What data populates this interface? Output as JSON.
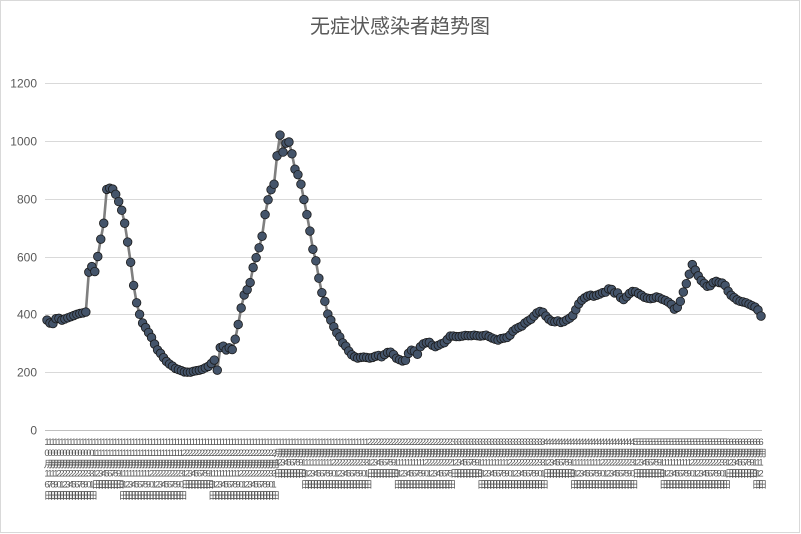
{
  "colors": {
    "line": "#7f7f7f",
    "marker_fill": "#44546a",
    "marker_stroke": "#1a1a1a",
    "gridline": "#d9d9d9",
    "axis": "#bfbfbf",
    "text": "#595959"
  },
  "chart_data": {
    "type": "line",
    "title": "无症状感染者趋势图",
    "xlabel": "",
    "ylabel": "",
    "ylim": [
      0,
      1200
    ],
    "y_ticks": [
      "0",
      "200",
      "400",
      "600",
      "800",
      "1000",
      "1200"
    ],
    "grid": "horizontal",
    "legend": "none",
    "markers": "circle",
    "categories": [
      "10月16日",
      "10月17日",
      "10月18日",
      "10月19日",
      "10月20日",
      "10月21日",
      "10月22日",
      "10月23日",
      "10月24日",
      "10月25日",
      "10月26日",
      "10月27日",
      "10月28日",
      "10月29日",
      "10月30日",
      "10月31日",
      "11月1日",
      "11月2日",
      "11月3日",
      "11月4日",
      "11月5日",
      "11月6日",
      "11月7日",
      "11月8日",
      "11月9日",
      "11月10日",
      "11月11日",
      "11月12日",
      "11月13日",
      "11月14日",
      "11月15日",
      "11月16日",
      "11月17日",
      "11月18日",
      "11月19日",
      "11月20日",
      "11月21日",
      "11月22日",
      "11月23日",
      "11月24日",
      "11月25日",
      "11月26日",
      "11月27日",
      "11月28日",
      "11月29日",
      "11月30日",
      "12月1日",
      "12月2日",
      "12月3日",
      "12月4日",
      "12月5日",
      "12月6日",
      "12月7日",
      "12月8日",
      "12月9日",
      "12月10日",
      "12月11日",
      "12月12日",
      "12月13日",
      "12月14日",
      "12月15日",
      "12月16日",
      "12月17日",
      "12月18日",
      "12月19日",
      "12月20日",
      "12月21日",
      "12月22日",
      "12月23日",
      "12月24日",
      "12月25日",
      "12月26日",
      "12月27日",
      "12月28日",
      "12月29日",
      "12月30日",
      "12月31日",
      "1月1日",
      "1月2日",
      "1月3日",
      "1月4日",
      "1月5日",
      "1月6日",
      "1月7日",
      "1月8日",
      "1月9日",
      "1月10日",
      "1月11日",
      "1月12日",
      "1月13日",
      "1月14日",
      "1月15日",
      "1月16日",
      "1月17日",
      "1月18日",
      "1月19日",
      "1月20日",
      "1月21日",
      "1月22日",
      "1月23日",
      "1月24日",
      "1月25日",
      "1月26日",
      "1月27日",
      "1月28日",
      "1月29日",
      "1月30日",
      "1月31日",
      "2月1日",
      "2月2日",
      "2月3日",
      "2月4日",
      "2月5日",
      "2月6日",
      "2月7日",
      "2月8日",
      "2月9日",
      "2月10日",
      "2月11日",
      "2月12日",
      "2月13日",
      "2月14日",
      "2月15日",
      "2月16日",
      "2月17日",
      "2月18日",
      "2月19日",
      "2月20日",
      "2月21日",
      "2月22日",
      "2月23日",
      "2月24日",
      "2月25日",
      "2月26日",
      "2月27日",
      "2月28日",
      "3月1日",
      "3月2日",
      "3月3日",
      "3月4日",
      "3月5日",
      "3月6日",
      "3月7日",
      "3月8日",
      "3月9日",
      "3月10日",
      "3月11日",
      "3月12日",
      "3月13日",
      "3月14日",
      "3月15日",
      "3月16日",
      "3月17日",
      "3月18日",
      "3月19日",
      "3月20日",
      "3月21日",
      "3月22日",
      "3月23日",
      "3月24日",
      "3月25日",
      "3月26日",
      "3月27日",
      "3月28日",
      "3月29日",
      "3月30日",
      "3月31日",
      "4月1日",
      "4月2日",
      "4月3日",
      "4月4日",
      "4月5日",
      "4月6日",
      "4月7日",
      "4月8日",
      "4月9日",
      "4月10日",
      "4月11日",
      "4月12日",
      "4月13日",
      "4月14日",
      "4月15日",
      "4月16日",
      "4月17日",
      "4月18日",
      "4月19日",
      "4月20日",
      "4月21日",
      "4月22日",
      "4月23日",
      "4月24日",
      "4月25日",
      "4月26日",
      "4月27日",
      "4月28日",
      "4月29日",
      "4月30日",
      "5月1日",
      "5月2日",
      "5月3日",
      "5月4日",
      "5月5日",
      "5月6日",
      "5月7日",
      "5月8日",
      "5月9日",
      "5月10日",
      "5月11日",
      "5月12日",
      "5月13日",
      "5月14日",
      "5月15日",
      "5月16日",
      "5月17日",
      "5月18日",
      "5月19日",
      "5月20日",
      "5月21日",
      "5月22日",
      "5月23日",
      "5月24日",
      "5月25日",
      "5月26日",
      "5月27日",
      "5月28日",
      "5月29日",
      "5月30日",
      "5月31日",
      "6月1日",
      "6月2日",
      "6月3日",
      "6月4日",
      "6月5日",
      "6月6日",
      "6月7日",
      "6月8日",
      "6月9日",
      "6月10日",
      "6月11日",
      "6月12日"
    ],
    "series": [
      {
        "values": [
          380,
          370,
          368,
          385,
          386,
          380,
          384,
          388,
          392,
          396,
          400,
          403,
          405,
          408,
          546,
          565,
          548,
          600,
          660,
          715,
          832,
          836,
          833,
          815,
          790,
          760,
          715,
          650,
          580,
          500,
          440,
          400,
          370,
          354,
          337,
          320,
          297,
          277,
          265,
          250,
          237,
          228,
          221,
          213,
          209,
          205,
          201,
          200,
          200,
          203,
          205,
          207,
          210,
          215,
          220,
          230,
          242,
          207,
          285,
          290,
          277,
          284,
          278,
          314,
          365,
          422,
          467,
          485,
          510,
          562,
          596,
          630,
          670,
          745,
          796,
          831,
          850,
          948,
          1020,
          961,
          992,
          996,
          955,
          902,
          883,
          850,
          797,
          745,
          688,
          625,
          585,
          525,
          475,
          445,
          401,
          380,
          357,
          336,
          322,
          301,
          290,
          273,
          260,
          253,
          249,
          251,
          252,
          251,
          249,
          251,
          255,
          258,
          253,
          261,
          268,
          269,
          261,
          248,
          243,
          239,
          241,
          265,
          276,
          273,
          262,
          288,
          298,
          302,
          303,
          293,
          288,
          293,
          298,
          302,
          313,
          325,
          325,
          323,
          323,
          325,
          327,
          326,
          326,
          328,
          326,
          325,
          326,
          328,
          323,
          318,
          314,
          311,
          316,
          318,
          320,
          328,
          342,
          350,
          355,
          360,
          370,
          377,
          383,
          394,
          405,
          410,
          407,
          394,
          383,
          376,
          374,
          377,
          372,
          375,
          381,
          387,
          396,
          416,
          436,
          449,
          457,
          463,
          466,
          463,
          466,
          470,
          475,
          477,
          488,
          486,
          474,
          474,
          458,
          451,
          461,
          472,
          479,
          478,
          472,
          466,
          459,
          456,
          454,
          456,
          460,
          457,
          452,
          448,
          442,
          434,
          418,
          424,
          445,
          477,
          506,
          539,
          572,
          553,
          533,
          517,
          507,
          497,
          499,
          510,
          514,
          510,
          508,
          500,
          480,
          466,
          458,
          450,
          445,
          443,
          440,
          435,
          430,
          425,
          415,
          394
        ]
      }
    ]
  }
}
